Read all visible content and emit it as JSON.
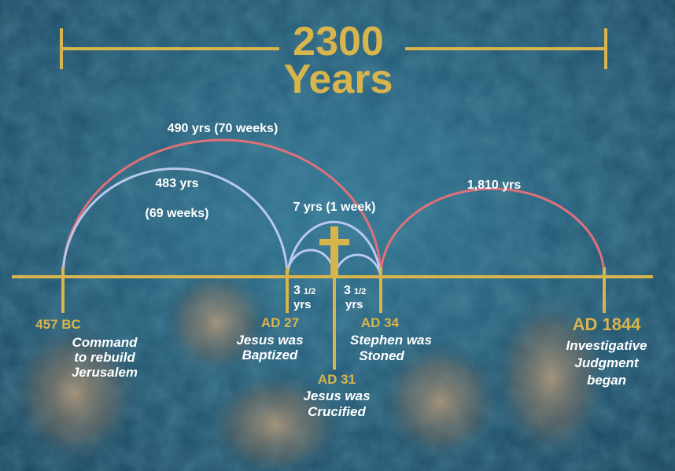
{
  "header": {
    "title": "2300",
    "subtitle": "Years"
  },
  "periods": [
    {
      "label": "490 yrs (70 weeks)"
    },
    {
      "label": "483 yrs",
      "sublabel": "(69 weeks)"
    },
    {
      "label": "7 yrs (1 week)"
    },
    {
      "label": "1,810 yrs"
    }
  ],
  "half_weeks": [
    {
      "number": "3",
      "fraction": "1/2",
      "unit": "yrs"
    },
    {
      "number": "3",
      "fraction": "1/2",
      "unit": "yrs"
    }
  ],
  "events": [
    {
      "date": "457 BC",
      "caption": [
        "Command",
        "to rebuild",
        "Jerusalem"
      ]
    },
    {
      "date": "AD 27",
      "caption": [
        "Jesus was",
        "Baptized"
      ]
    },
    {
      "date": "AD 31",
      "caption": [
        "Jesus was",
        "Crucified"
      ]
    },
    {
      "date": "AD 34",
      "caption": [
        "Stephen was",
        "Stoned"
      ]
    },
    {
      "date": "AD 1844",
      "caption": [
        "Investigative",
        "Judgment",
        "began"
      ]
    }
  ]
}
